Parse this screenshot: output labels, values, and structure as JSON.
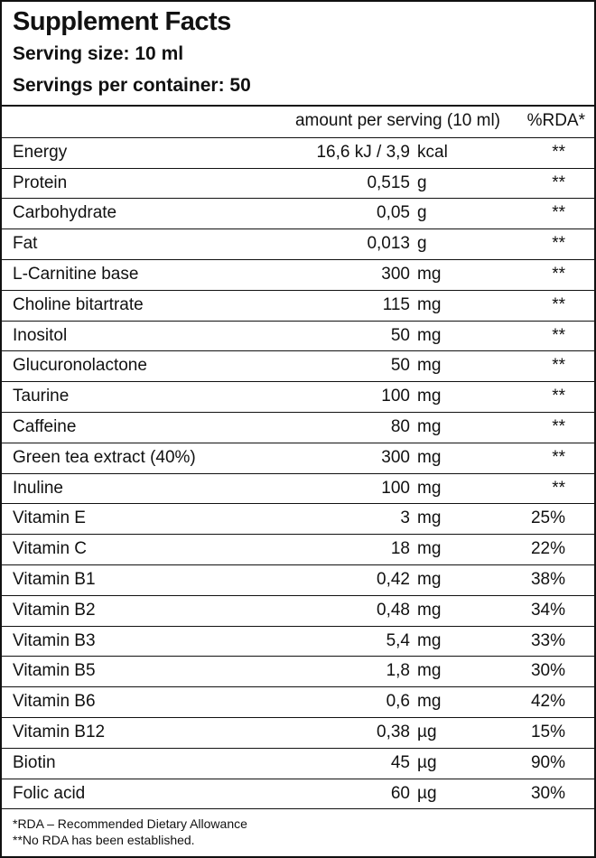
{
  "header": {
    "title": "Supplement Facts",
    "serving_size": "Serving size: 10 ml",
    "servings_per_container": "Servings per container: 50"
  },
  "table": {
    "columns": [
      "amount per serving (10 ml)",
      "%RDA*"
    ],
    "rows": [
      [
        "Energy",
        "16,6 kJ / 3,9",
        "kcal",
        "**"
      ],
      [
        "Protein",
        "0,515",
        "g",
        "**"
      ],
      [
        "Carbohydrate",
        "0,05",
        "g",
        "**"
      ],
      [
        "Fat",
        "0,013",
        "g",
        "**"
      ],
      [
        "L-Carnitine base",
        "300",
        "mg",
        "**"
      ],
      [
        "Choline bitartrate",
        "115",
        "mg",
        "**"
      ],
      [
        "Inositol",
        "50",
        "mg",
        "**"
      ],
      [
        "Glucuronolactone",
        "50",
        "mg",
        "**"
      ],
      [
        "Taurine",
        "100",
        "mg",
        "**"
      ],
      [
        "Caffeine",
        "80",
        "mg",
        "**"
      ],
      [
        "Green tea extract (40%)",
        "300",
        "mg",
        "**"
      ],
      [
        "Inuline",
        "100",
        "mg",
        "**"
      ],
      [
        "Vitamin E",
        "3",
        "mg",
        "25%"
      ],
      [
        "Vitamin C",
        "18",
        "mg",
        "22%"
      ],
      [
        "Vitamin B1",
        "0,42",
        "mg",
        "38%"
      ],
      [
        "Vitamin B2",
        "0,48",
        "mg",
        "34%"
      ],
      [
        "Vitamin B3",
        "5,4",
        "mg",
        "33%"
      ],
      [
        "Vitamin B5",
        "1,8",
        "mg",
        "30%"
      ],
      [
        "Vitamin B6",
        "0,6",
        "mg",
        "42%"
      ],
      [
        "Vitamin B12",
        "0,38",
        "µg",
        "15%"
      ],
      [
        "Biotin",
        "45",
        "µg",
        "90%"
      ],
      [
        "Folic acid",
        "60",
        "µg",
        "30%"
      ]
    ]
  },
  "footer": {
    "notes": [
      "*RDA – Recommended Dietary Allowance",
      "**No RDA has been established."
    ]
  }
}
